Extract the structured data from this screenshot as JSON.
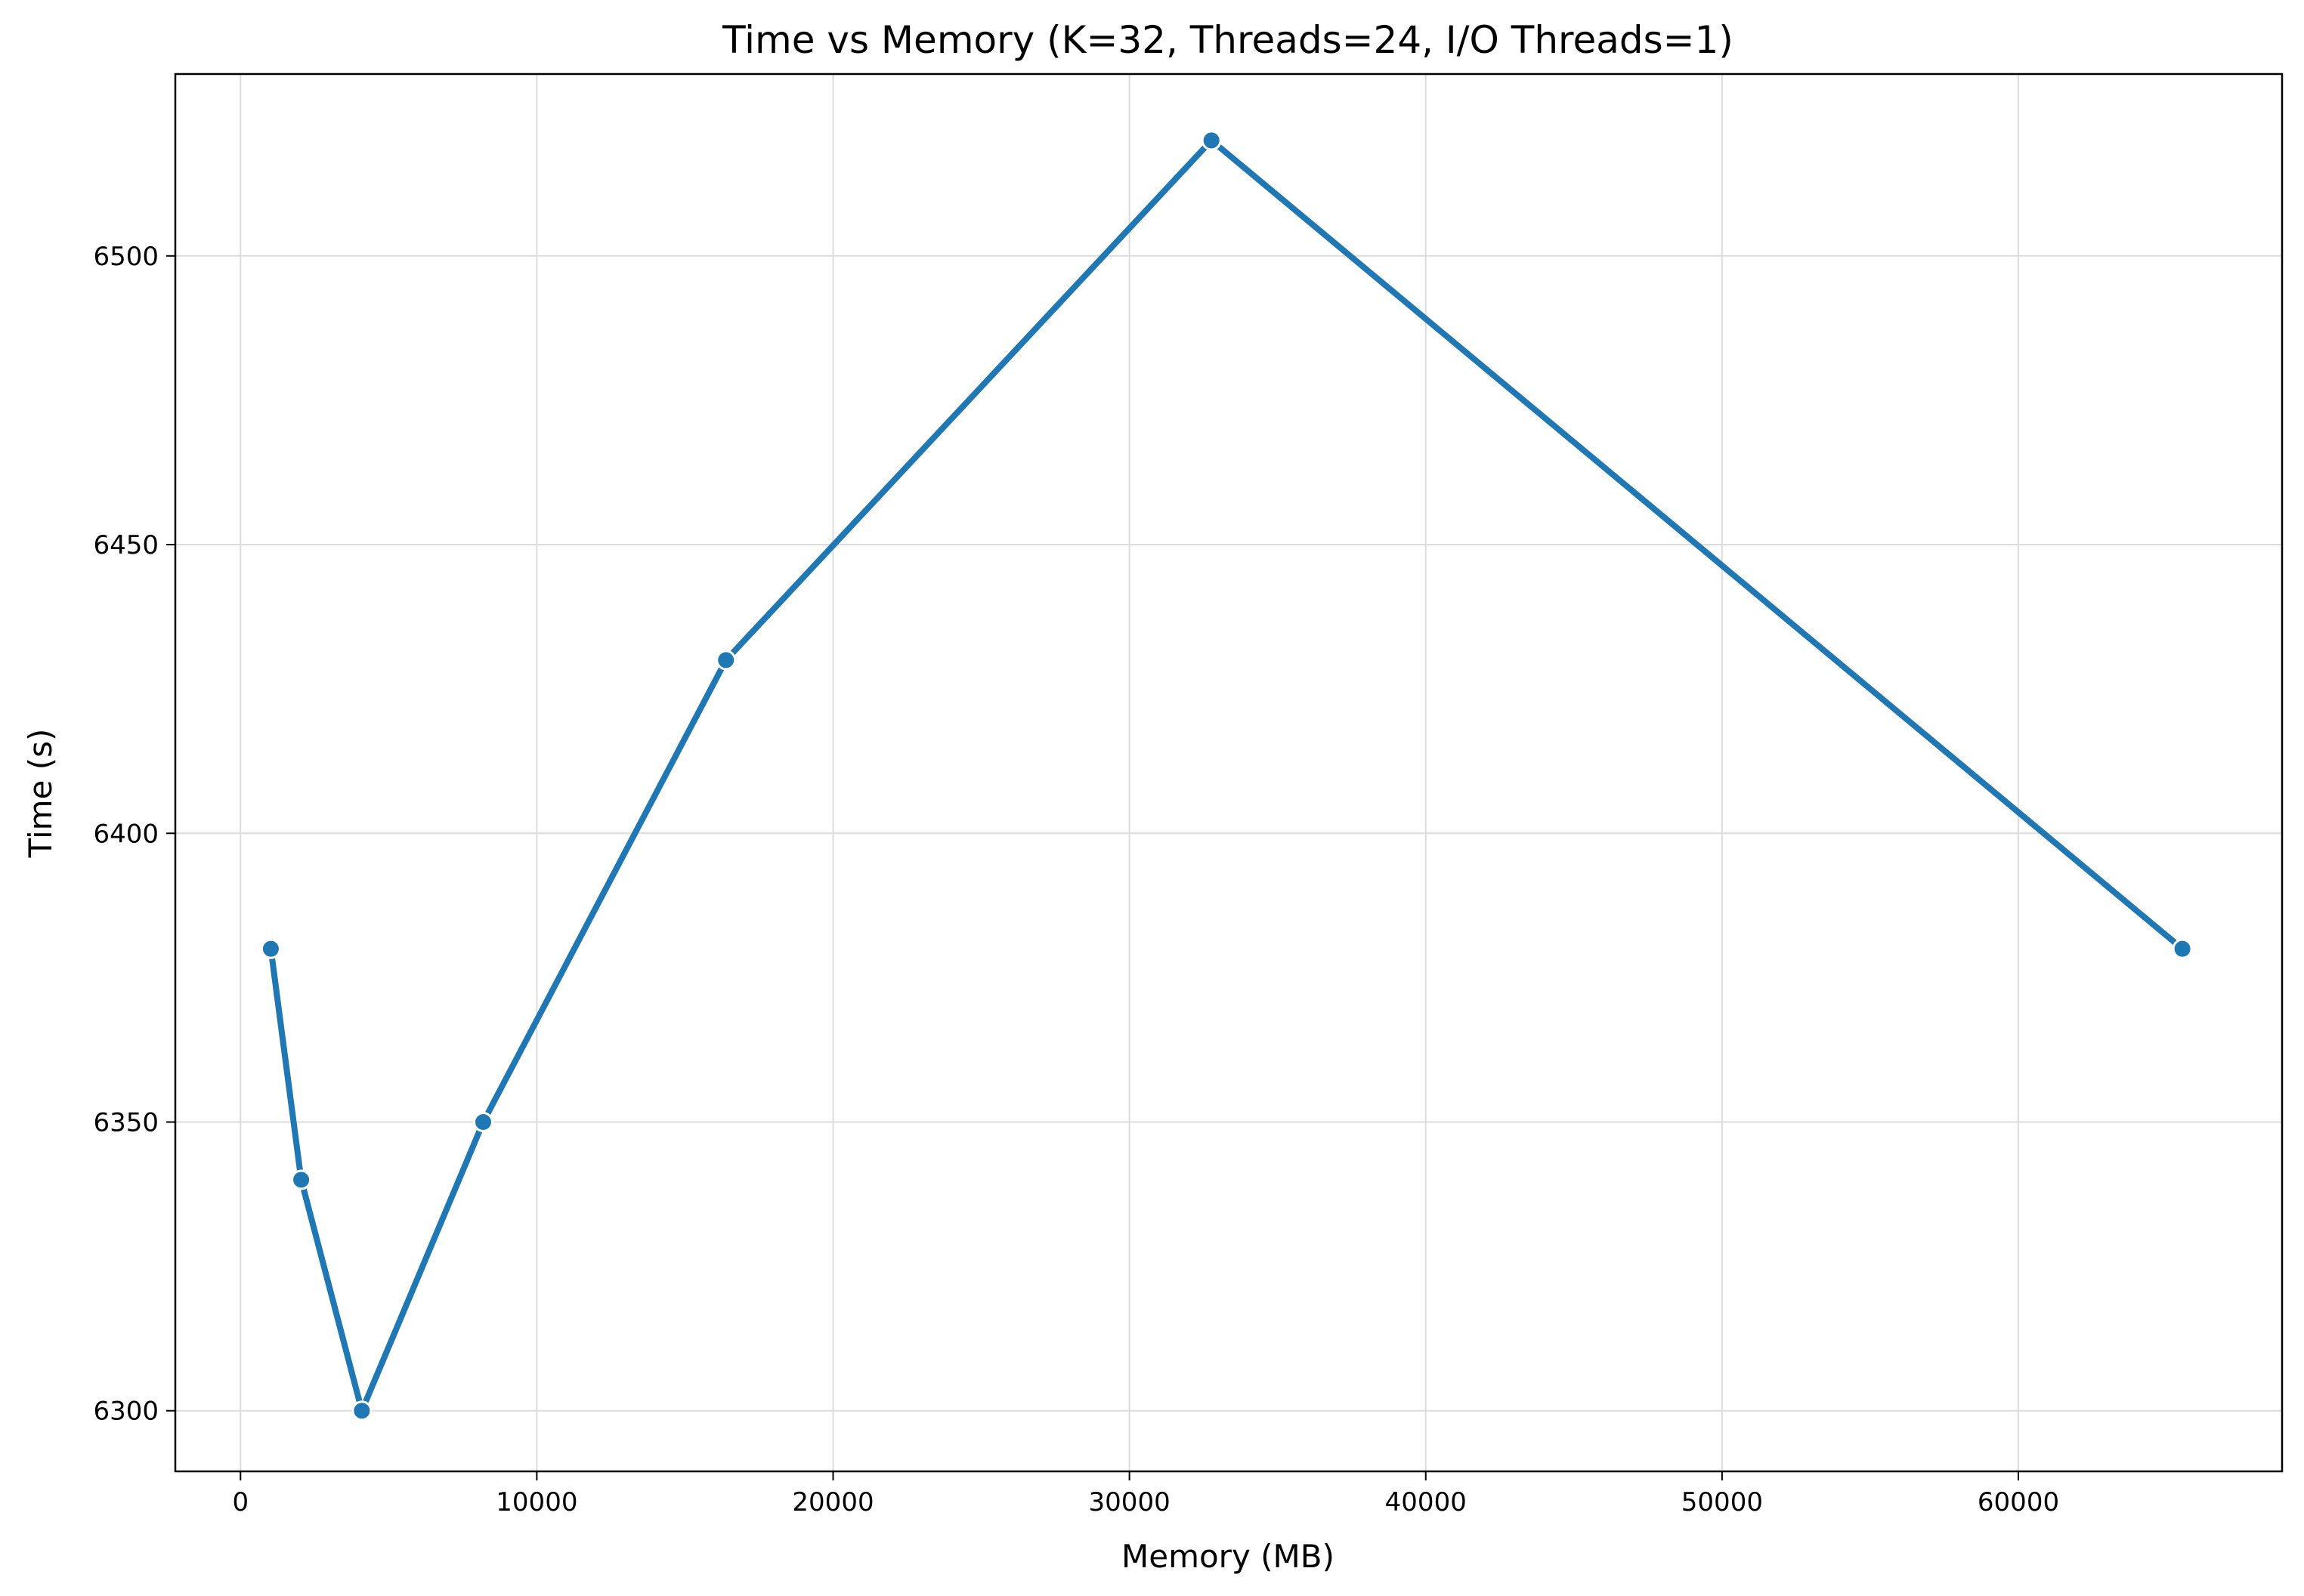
{
  "chart_data": {
    "type": "line",
    "title": "Time vs Memory (K=32, Threads=24, I/O Threads=1)",
    "xlabel": "Memory (MB)",
    "ylabel": "Time (s)",
    "xlim": [
      -2200,
      68900
    ],
    "ylim": [
      6289.5,
      6531.5
    ],
    "xticks": [
      0,
      10000,
      20000,
      30000,
      40000,
      50000,
      60000
    ],
    "xtick_labels": [
      "0",
      "10000",
      "20000",
      "30000",
      "40000",
      "50000",
      "60000"
    ],
    "yticks": [
      6300,
      6350,
      6400,
      6450,
      6500
    ],
    "ytick_labels": [
      "6300",
      "6350",
      "6400",
      "6450",
      "6500"
    ],
    "grid": true,
    "series": [
      {
        "color": "#1f77b4",
        "marker": "circle",
        "x": [
          1024,
          2048,
          4096,
          8192,
          16384,
          32768,
          65536
        ],
        "y": [
          6380,
          6340,
          6300,
          6350,
          6430,
          6520,
          6380
        ]
      }
    ]
  }
}
